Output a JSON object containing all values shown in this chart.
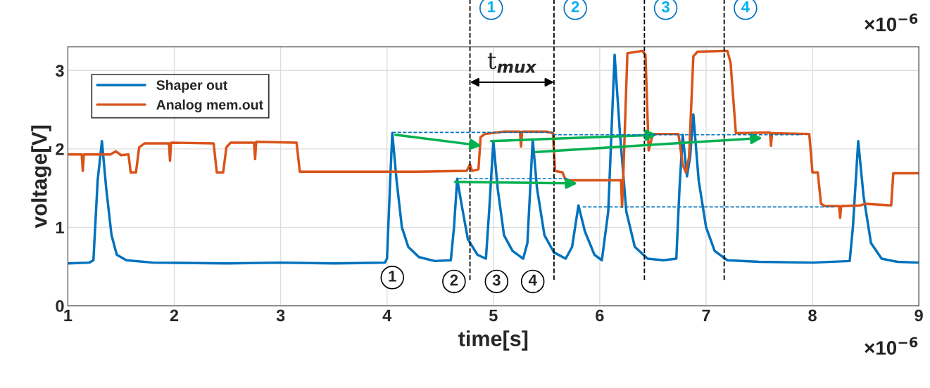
{
  "chart_data": {
    "type": "line",
    "xlabel": "time[s]",
    "ylabel": "voltage[V]",
    "xlim": [
      1,
      9
    ],
    "xticks": [
      1,
      2,
      3,
      4,
      5,
      6,
      7,
      8,
      9
    ],
    "ylim": [
      0,
      3.3
    ],
    "yticks": [
      0,
      1,
      2,
      3
    ],
    "grid": true,
    "legend": "top left",
    "series": [
      {
        "name": "Shaper out",
        "color": "#0072bd",
        "x": [
          1.0,
          1.2,
          1.24,
          1.28,
          1.32,
          1.36,
          1.41,
          1.46,
          1.55,
          1.8,
          2.5,
          3.0,
          3.5,
          3.98,
          4.0,
          4.03,
          4.05,
          4.09,
          4.14,
          4.2,
          4.3,
          4.45,
          4.6,
          4.63,
          4.66,
          4.7,
          4.76,
          4.85,
          4.93,
          4.96,
          5.0,
          5.04,
          5.1,
          5.18,
          5.28,
          5.32,
          5.37,
          5.41,
          5.48,
          5.57,
          5.68,
          5.74,
          5.8,
          5.86,
          5.95,
          6.02,
          6.08,
          6.14,
          6.19,
          6.25,
          6.33,
          6.45,
          6.6,
          6.72,
          6.75,
          6.78,
          6.82,
          6.85,
          6.88,
          6.93,
          7.0,
          7.08,
          7.2,
          7.5,
          8.0,
          8.35,
          8.38,
          8.43,
          8.48,
          8.55,
          8.65,
          8.8,
          9.0
        ],
        "values": [
          0.54,
          0.55,
          0.58,
          1.6,
          2.1,
          1.5,
          0.9,
          0.65,
          0.58,
          0.55,
          0.54,
          0.55,
          0.54,
          0.55,
          0.6,
          1.6,
          2.2,
          1.6,
          1.0,
          0.75,
          0.62,
          0.57,
          0.58,
          1.0,
          1.62,
          1.3,
          0.85,
          0.65,
          0.6,
          1.2,
          2.1,
          1.5,
          0.9,
          0.7,
          0.6,
          0.8,
          2.12,
          1.5,
          0.9,
          0.68,
          0.6,
          0.75,
          1.28,
          0.95,
          0.65,
          0.58,
          1.2,
          3.2,
          2.2,
          1.2,
          0.75,
          0.6,
          0.58,
          0.6,
          1.5,
          2.18,
          1.65,
          1.9,
          2.44,
          1.6,
          1.0,
          0.7,
          0.58,
          0.56,
          0.55,
          0.57,
          1.0,
          2.1,
          1.4,
          0.8,
          0.6,
          0.56,
          0.55
        ]
      },
      {
        "name": "Analog mem.out",
        "color": "#d95319",
        "x": [
          1.0,
          1.13,
          1.14,
          1.15,
          1.4,
          1.45,
          1.5,
          1.57,
          1.59,
          1.64,
          1.67,
          1.72,
          1.95,
          1.96,
          1.97,
          2.37,
          2.4,
          2.46,
          2.49,
          2.53,
          2.75,
          2.76,
          2.77,
          3.15,
          3.18,
          4.3,
          4.75,
          4.78,
          4.8,
          4.86,
          4.88,
          4.92,
          5.1,
          5.25,
          5.26,
          5.27,
          5.5,
          5.56,
          5.58,
          5.65,
          5.68,
          6.2,
          6.21,
          6.22,
          6.26,
          6.4,
          6.43,
          6.46,
          6.5,
          6.74,
          6.78,
          6.81,
          6.84,
          6.88,
          6.92,
          7.2,
          7.23,
          7.28,
          7.6,
          7.61,
          7.62,
          7.97,
          8.0,
          8.05,
          8.08,
          8.12,
          8.25,
          8.26,
          8.27,
          8.45,
          8.5,
          8.74,
          8.76,
          9.0
        ],
        "values": [
          1.93,
          1.93,
          1.72,
          1.93,
          1.93,
          1.97,
          1.92,
          1.93,
          1.7,
          1.7,
          2.02,
          2.07,
          2.07,
          1.85,
          2.08,
          2.07,
          1.7,
          1.7,
          2.02,
          2.08,
          2.08,
          1.87,
          2.09,
          2.08,
          1.71,
          1.71,
          1.72,
          1.8,
          1.72,
          1.74,
          2.15,
          2.19,
          2.22,
          2.22,
          2.03,
          2.22,
          2.22,
          2.2,
          1.72,
          1.7,
          1.6,
          1.6,
          1.26,
          1.6,
          3.22,
          3.25,
          3.2,
          1.98,
          2.19,
          2.19,
          1.8,
          1.7,
          1.9,
          3.18,
          3.24,
          3.25,
          3.1,
          2.2,
          2.21,
          2.04,
          2.2,
          2.19,
          1.7,
          1.7,
          1.3,
          1.27,
          1.27,
          1.12,
          1.27,
          1.28,
          1.3,
          1.28,
          1.69,
          1.69
        ]
      },
      {
        "color": "#0072bd",
        "line_style": "dashed",
        "x": [
          4.05,
          5.56
        ],
        "values": [
          2.21,
          2.21
        ]
      },
      {
        "color": "#0072bd",
        "line_style": "dashed",
        "x": [
          5.56,
          7.9
        ],
        "values": [
          2.18,
          2.18
        ]
      },
      {
        "color": "#0072bd",
        "line_style": "dashed",
        "x": [
          4.67,
          5.69
        ],
        "values": [
          1.62,
          1.62
        ]
      },
      {
        "color": "#0072bd",
        "line_style": "dashed",
        "x": [
          5.84,
          8.2
        ],
        "values": [
          1.26,
          1.26
        ]
      }
    ],
    "ref_lines": [
      {
        "axis": "x",
        "value": 4.78,
        "color": "#000000",
        "line_style": "dashed"
      },
      {
        "axis": "x",
        "value": 5.57,
        "color": "#000000",
        "line_style": "dashed"
      },
      {
        "axis": "x",
        "value": 6.42,
        "color": "#000000",
        "line_style": "dashed"
      },
      {
        "axis": "x",
        "value": 7.17,
        "color": "#000000",
        "line_style": "dashed"
      }
    ],
    "annotations": [
      "1",
      "2",
      "3",
      "4",
      {
        "text": "t$_{mux}$",
        "x": 4.78,
        "y": 2.85
      },
      {
        "text": "1",
        "x": 4.05,
        "y": 0.36
      },
      {
        "text": "2",
        "x": 4.63,
        "y": 0.31
      },
      {
        "text": "3",
        "x": 5.03,
        "y": 0.31
      },
      {
        "text": "4",
        "x": 5.37,
        "y": 0.31
      },
      "×10$^{−6}$",
      "×10$^{−6}$"
    ]
  }
}
